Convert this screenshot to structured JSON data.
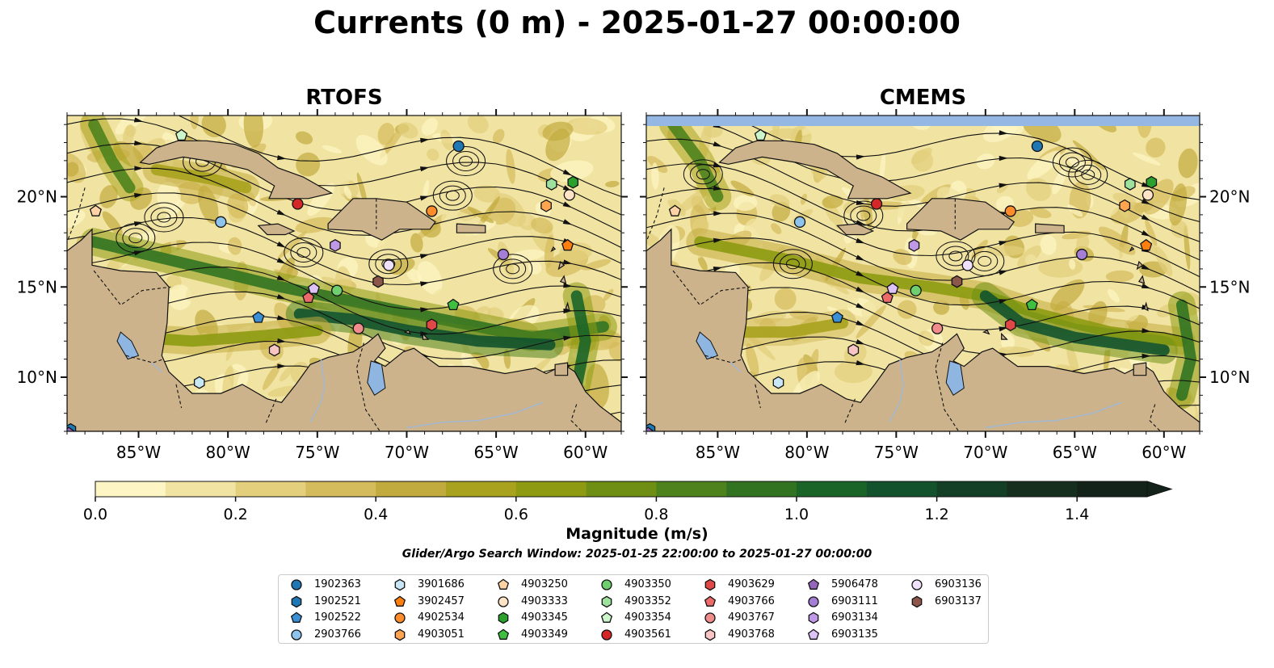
{
  "title": "Currents (0 m) - 2025-01-27 00:00:00",
  "colors": {
    "land": "#cdb38c",
    "lake": "#8fb6e0",
    "nodata": "#94b7e3",
    "river": "#9fb8d6"
  },
  "colorbar": {
    "label": "Magnitude (m/s)",
    "ticks": [
      "0.0",
      "0.2",
      "0.4",
      "0.6",
      "0.8",
      "1.0",
      "1.2",
      "1.4"
    ],
    "tick_values": [
      0,
      0.2,
      0.4,
      0.6,
      0.8,
      1.0,
      1.2,
      1.4
    ],
    "bounds": [
      0,
      1.5
    ],
    "extend": "max",
    "colors": [
      "#fdf6c4",
      "#f1e4a2",
      "#e3cf7c",
      "#d4bb5c",
      "#c2ab3e",
      "#a9a21e",
      "#8d9a12",
      "#6f8f14",
      "#4e821c",
      "#327321",
      "#1b6428",
      "#12532d",
      "#143f27",
      "#162e1e",
      "#13231a"
    ]
  },
  "search_window": "Glider/Argo Search Window: 2025-01-25 22:00:00 to 2025-01-27 00:00:00",
  "chart_data": [
    {
      "type": "map",
      "title": "RTOFS",
      "xlim": [
        -89,
        -58
      ],
      "ylim": [
        7,
        24.5
      ],
      "xticks": [
        "85°W",
        "80°W",
        "75°W",
        "70°W",
        "65°W",
        "60°W"
      ],
      "xtick_values": [
        -85,
        -80,
        -75,
        -70,
        -65,
        -60
      ],
      "yticks": [
        "10°N",
        "15°N",
        "20°N"
      ],
      "ytick_values": [
        10,
        15,
        20
      ],
      "ytick_side": "left",
      "nodata_band": false,
      "strong_jets": [
        {
          "points": [
            [
              -87.5,
              17.5
            ],
            [
              -82,
              16.2
            ],
            [
              -77,
              15
            ],
            [
              -72,
              14
            ],
            [
              -67,
              13
            ],
            [
              -63,
              12.2
            ],
            [
              -59,
              12.8
            ]
          ],
          "magnitude": 0.9
        },
        {
          "points": [
            [
              -76,
              13.5
            ],
            [
              -73,
              13.2
            ],
            [
              -70,
              12.6
            ],
            [
              -66,
              12
            ],
            [
              -62,
              11.8
            ]
          ],
          "magnitude": 1.2
        },
        {
          "points": [
            [
              -60.5,
              14.5
            ],
            [
              -60,
              12
            ],
            [
              -60.5,
              9.5
            ]
          ],
          "magnitude": 1.0
        },
        {
          "points": [
            [
              -87.5,
              24
            ],
            [
              -86.5,
              22
            ],
            [
              -85.5,
              20.5
            ]
          ],
          "magnitude": 0.8
        },
        {
          "points": [
            [
              -84,
              21.5
            ],
            [
              -81,
              21
            ],
            [
              -79,
              20.5
            ]
          ],
          "magnitude": 0.6
        },
        {
          "points": [
            [
              -85,
              12.2
            ],
            [
              -82,
              12
            ],
            [
              -78,
              12.3
            ],
            [
              -75,
              12.6
            ]
          ],
          "magnitude": 0.7
        },
        {
          "points": [
            [
              -88.5,
              9
            ],
            [
              -86.5,
              10.5
            ]
          ],
          "magnitude": 1.1
        },
        {
          "points": [
            [
              -80,
              8
            ],
            [
              -78,
              7.4
            ]
          ],
          "magnitude": 0.8
        }
      ]
    },
    {
      "type": "map",
      "title": "CMEMS",
      "xlim": [
        -89,
        -58
      ],
      "ylim": [
        7,
        24.5
      ],
      "xticks": [
        "85°W",
        "80°W",
        "75°W",
        "70°W",
        "65°W",
        "60°W"
      ],
      "xtick_values": [
        -85,
        -80,
        -75,
        -70,
        -65,
        -60
      ],
      "yticks": [
        "10°N",
        "15°N",
        "20°N"
      ],
      "ytick_values": [
        10,
        15,
        20
      ],
      "ytick_side": "right",
      "nodata_band": true,
      "strong_jets": [
        {
          "points": [
            [
              -86,
              17.5
            ],
            [
              -81,
              16.5
            ],
            [
              -77,
              15.5
            ],
            [
              -73,
              15
            ],
            [
              -70,
              14.5
            ],
            [
              -67,
              13.5
            ],
            [
              -63,
              12.5
            ],
            [
              -59,
              12
            ]
          ],
          "magnitude": 0.7
        },
        {
          "points": [
            [
              -70,
              14.5
            ],
            [
              -68,
              13
            ],
            [
              -65,
              12.2
            ],
            [
              -60,
              11.5
            ]
          ],
          "magnitude": 1.1
        },
        {
          "points": [
            [
              -59,
              14
            ],
            [
              -58.5,
              11
            ],
            [
              -59,
              9
            ]
          ],
          "magnitude": 0.9
        },
        {
          "points": [
            [
              -87.5,
              24
            ],
            [
              -86,
              22
            ],
            [
              -85,
              20
            ]
          ],
          "magnitude": 0.8
        },
        {
          "points": [
            [
              -88.5,
              11
            ],
            [
              -86,
              10.5
            ]
          ],
          "magnitude": 0.9
        },
        {
          "points": [
            [
              -84,
              12.5
            ],
            [
              -81,
              12.5
            ],
            [
              -78,
              13
            ]
          ],
          "magnitude": 0.5
        }
      ]
    }
  ],
  "floats": [
    {
      "id": "1902363",
      "marker": "circle",
      "color": "#1f77b4",
      "lon": -67.1,
      "lat": 22.8
    },
    {
      "id": "1902521",
      "marker": "hexagon",
      "color": "#1f77b4",
      "lon": -88.8,
      "lat": 7.1
    },
    {
      "id": "1902522",
      "marker": "pentagon",
      "color": "#3b8fd4",
      "lon": -78.3,
      "lat": 13.3
    },
    {
      "id": "2903766",
      "marker": "circle",
      "color": "#8dc3ec",
      "lon": -80.4,
      "lat": 18.6
    },
    {
      "id": "3901686",
      "marker": "hexagon",
      "color": "#c7e6f6",
      "lon": -81.6,
      "lat": 9.7
    },
    {
      "id": "3902457",
      "marker": "pentagon",
      "color": "#ff7f0e",
      "lon": -61,
      "lat": 17.3
    },
    {
      "id": "4902534",
      "marker": "circle",
      "color": "#ff8c2b",
      "lon": -68.6,
      "lat": 19.2
    },
    {
      "id": "4903051",
      "marker": "hexagon",
      "color": "#ffa550",
      "lon": -62.2,
      "lat": 19.5
    },
    {
      "id": "4903250",
      "marker": "pentagon",
      "color": "#ffd3a5",
      "lon": -87.4,
      "lat": 19.2
    },
    {
      "id": "4903333",
      "marker": "circle",
      "color": "#ffe3c6",
      "lon": -60.9,
      "lat": 20.1
    },
    {
      "id": "4903345",
      "marker": "hexagon",
      "color": "#2ca02c",
      "lon": -60.7,
      "lat": 20.8
    },
    {
      "id": "4903349",
      "marker": "pentagon",
      "color": "#3fbf3f",
      "lon": -67.4,
      "lat": 14
    },
    {
      "id": "4903350",
      "marker": "circle",
      "color": "#6fcf6f",
      "lon": -73.9,
      "lat": 14.8
    },
    {
      "id": "4903352",
      "marker": "hexagon",
      "color": "#9ee09e",
      "lon": -61.9,
      "lat": 20.7
    },
    {
      "id": "4903354",
      "marker": "pentagon",
      "color": "#ccf5cc",
      "lon": -82.6,
      "lat": 23.4
    },
    {
      "id": "4903561",
      "marker": "circle",
      "color": "#d62728",
      "lon": -76.1,
      "lat": 19.6
    },
    {
      "id": "4903629",
      "marker": "hexagon",
      "color": "#e04848",
      "lon": -68.6,
      "lat": 12.9
    },
    {
      "id": "4903766",
      "marker": "pentagon",
      "color": "#ec6a6a",
      "lon": -75.5,
      "lat": 14.4
    },
    {
      "id": "4903767",
      "marker": "circle",
      "color": "#f08c8c",
      "lon": -72.7,
      "lat": 12.7
    },
    {
      "id": "4903768",
      "marker": "hexagon",
      "color": "#f8c4c4",
      "lon": -77.4,
      "lat": 11.5
    },
    {
      "id": "5906478",
      "marker": "pentagon",
      "color": "#9467bd",
      "lon": -88.9,
      "lat": 6.9
    },
    {
      "id": "6903111",
      "marker": "circle",
      "color": "#a47ed4",
      "lon": -64.6,
      "lat": 16.8
    },
    {
      "id": "6903134",
      "marker": "hexagon",
      "color": "#bf98e6",
      "lon": -74,
      "lat": 17.3
    },
    {
      "id": "6903135",
      "marker": "pentagon",
      "color": "#dcc2f6",
      "lon": -75.2,
      "lat": 14.9
    },
    {
      "id": "6903136",
      "marker": "circle",
      "color": "#efe0fc",
      "lon": -71,
      "lat": 16.2
    },
    {
      "id": "6903137",
      "marker": "hexagon",
      "color": "#8c564b",
      "lon": -71.6,
      "lat": 15.3
    }
  ]
}
